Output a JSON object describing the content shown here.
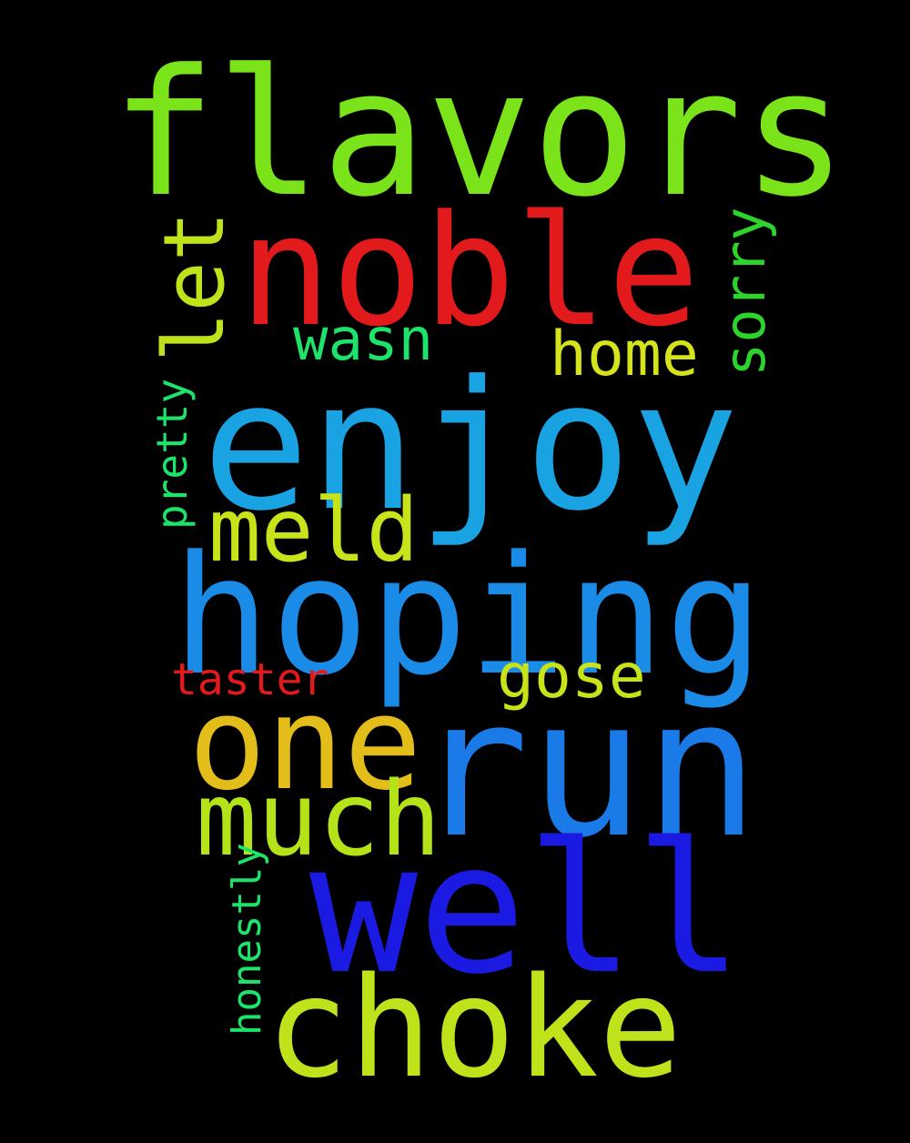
{
  "words": {
    "flavors": {
      "text": "flavors",
      "color": "#7BE31A"
    },
    "noble": {
      "text": "noble",
      "color": "#E31A1C"
    },
    "let": {
      "text": "let",
      "color": "#BEE31A"
    },
    "sorry": {
      "text": "sorry",
      "color": "#2CD42C"
    },
    "wasn": {
      "text": "wasn",
      "color": "#1DE36A"
    },
    "home": {
      "text": "home",
      "color": "#D4E31A"
    },
    "enjoy": {
      "text": "enjoy",
      "color": "#1AA3E3"
    },
    "pretty": {
      "text": "pretty",
      "color": "#1DE36A"
    },
    "meld": {
      "text": "meld",
      "color": "#C8E31A"
    },
    "hoping": {
      "text": "hoping",
      "color": "#1A8CE8"
    },
    "taster": {
      "text": "taster",
      "color": "#E31A1C"
    },
    "gose": {
      "text": "gose",
      "color": "#C8E31A"
    },
    "one": {
      "text": "one",
      "color": "#E3BE1A"
    },
    "run": {
      "text": "run",
      "color": "#1A7BE8"
    },
    "much": {
      "text": "much",
      "color": "#B4E31A"
    },
    "honestly": {
      "text": "honestly",
      "color": "#1DE36A"
    },
    "well": {
      "text": "well",
      "color": "#1A1AE3"
    },
    "choke": {
      "text": "choke",
      "color": "#BEE31A"
    }
  }
}
